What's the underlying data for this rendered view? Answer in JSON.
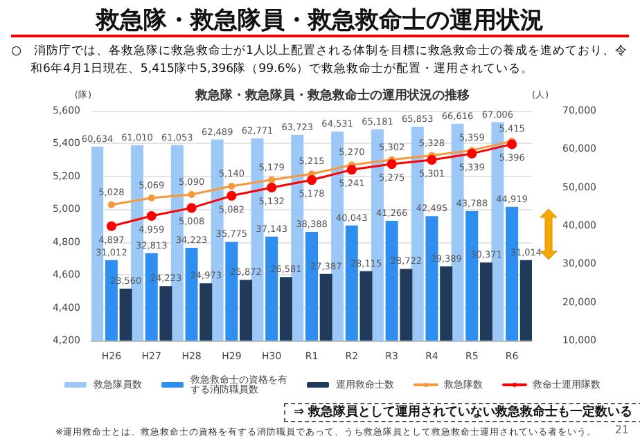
{
  "chart_data": {
    "type": "bar",
    "title": "救急隊・救急隊員・救急救命士の運用状況の推移",
    "subtitle": "救急隊・救急隊員・救急救命士の運用状況",
    "ylabel": "(隊)",
    "y2label": "(人)",
    "annotations": [
      "○　消防庁では、各救急隊に救急救命士が1人以上配置される体制を目標に救急救命士の養成を進めており、令和6年4月1日現在、5,415隊中5,396隊（99.6%）で救急救命士が配置・運用されている。",
      "⇒  救急隊員として運用されていない救急救命士も一定数いる",
      "※運用救命士とは、救急救命士の資格を有する消防職員であって、うち救急隊員として救急救命士運用されている者をいう。",
      "21"
    ],
    "categories": [
      "H26",
      "H27",
      "H28",
      "H29",
      "H30",
      "R1",
      "R2",
      "R3",
      "R4",
      "R5",
      "R6"
    ],
    "series": [
      {
        "name": "救急隊員数",
        "axis": "y2",
        "color": "#9cc8f7",
        "values": [
          60634,
          61010,
          61053,
          62489,
          62771,
          63723,
          64531,
          65181,
          65853,
          66616,
          67006
        ],
        "value_labels": [
          "60,634",
          "61,010",
          "61,053",
          "62,489",
          "62,771",
          "63,723",
          "64,531",
          "65,181",
          "65,853",
          "66,616",
          "67,006"
        ]
      },
      {
        "name": "救急救命士の資格を有する消防職員数",
        "axis": "y2",
        "color": "#2f8ff0",
        "values": [
          31012,
          32813,
          34223,
          35775,
          37143,
          38388,
          40043,
          41266,
          42495,
          43788,
          44919
        ],
        "value_labels": [
          "31,012",
          "32,813",
          "34,223",
          "35,775",
          "37,143",
          "38,388",
          "40,043",
          "41,266",
          "42,495",
          "43,788",
          "44,919"
        ]
      },
      {
        "name": "運用救命士数",
        "axis": "y2",
        "color": "#203a5c",
        "values": [
          23560,
          24223,
          24973,
          25872,
          26581,
          27387,
          28115,
          28722,
          29389,
          30371,
          31014
        ],
        "value_labels": [
          "23,560",
          "24,223",
          "24,973",
          "25,872",
          "26,581",
          "27,387",
          "28,115",
          "28,722",
          "29,389",
          "30,371",
          "31,014"
        ]
      },
      {
        "name": "救急隊数",
        "type": "line",
        "color": "#f7993b",
        "values": [
          5028,
          5069,
          5090,
          5140,
          5179,
          5215,
          5270,
          5302,
          5328,
          5359,
          5415
        ],
        "value_labels": [
          "5,028",
          "5,069",
          "5,090",
          "5,140",
          "5,179",
          "5,215",
          "5,270",
          "5,302",
          "5,328",
          "5,359",
          "5,415"
        ]
      },
      {
        "name": "救命士運用隊数",
        "type": "line",
        "color": "#ff0000",
        "values": [
          4897,
          4959,
          5008,
          5082,
          5132,
          5178,
          5241,
          5275,
          5301,
          5339,
          5396
        ],
        "value_labels": [
          "4,897",
          "4,959",
          "5,008",
          "5,082",
          "5,132",
          "5,178",
          "5,241",
          "5,275",
          "5,301",
          "5,339",
          "5,396"
        ]
      }
    ],
    "ylim": [
      4200,
      5600
    ],
    "yticks": [
      {
        "value": 4200,
        "label": "4,200"
      },
      {
        "value": 4400,
        "label": "4,400"
      },
      {
        "value": 4600,
        "label": "4,600"
      },
      {
        "value": 4800,
        "label": "4,800"
      },
      {
        "value": 5000,
        "label": "5,000"
      },
      {
        "value": 5200,
        "label": "5,200"
      },
      {
        "value": 5400,
        "label": "5,400"
      },
      {
        "value": 5600,
        "label": "5,600"
      }
    ],
    "y2lim": [
      10000,
      70000
    ],
    "y2ticks": [
      {
        "value": 10000,
        "label": "10,000"
      },
      {
        "value": 20000,
        "label": "20,000"
      },
      {
        "value": 30000,
        "label": "30,000"
      },
      {
        "value": 40000,
        "label": "40,000"
      },
      {
        "value": 50000,
        "label": "50,000"
      },
      {
        "value": 60000,
        "label": "60,000"
      },
      {
        "value": 70000,
        "label": "70,000"
      }
    ],
    "grid": "y",
    "legend": "bottom",
    "marker": "circle",
    "line_style": "solid"
  }
}
